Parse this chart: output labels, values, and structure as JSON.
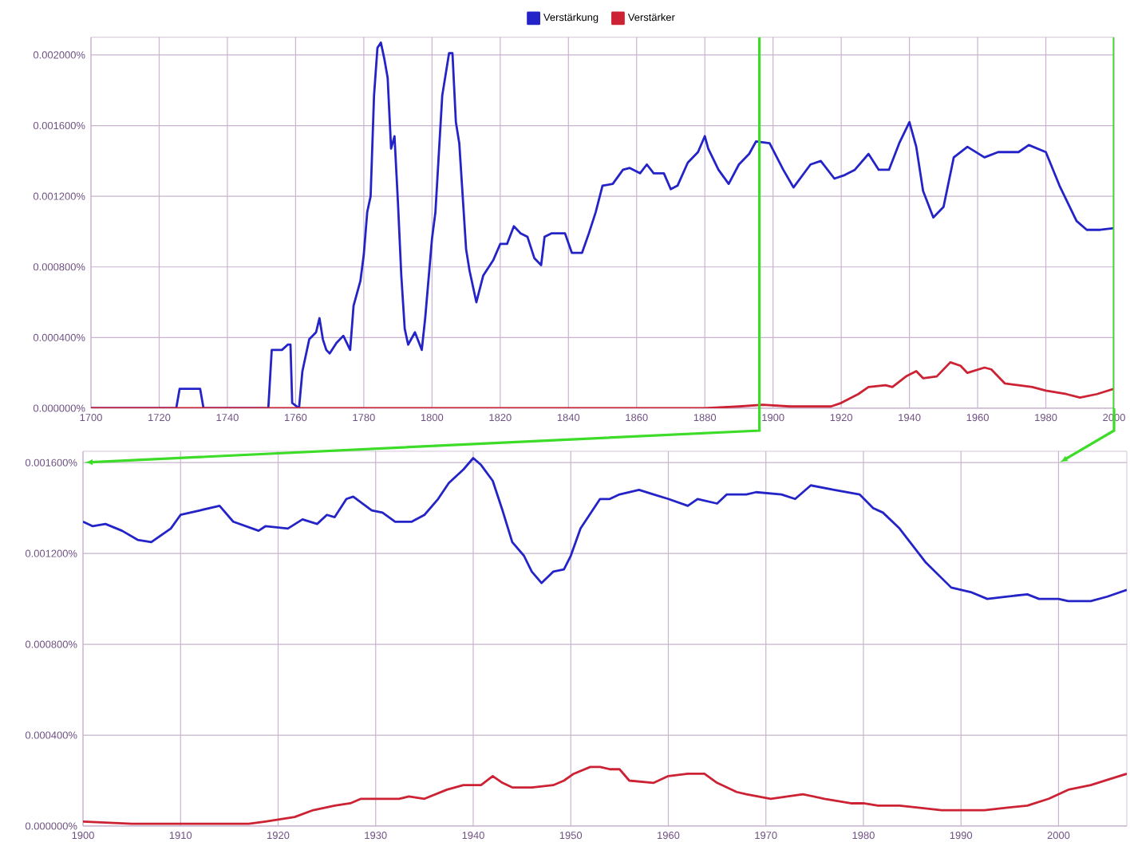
{
  "chart_data": [
    {
      "type": "line",
      "xlim": [
        1700,
        2000
      ],
      "ylim": [
        0,
        0.0021
      ],
      "grid": true,
      "legend": "top",
      "ref_lines": [
        {
          "axis": "x",
          "value": 1896,
          "color": "#3cdc28"
        },
        {
          "axis": "x",
          "value": 2000,
          "color": "#3cdc28"
        }
      ],
      "xticks": [
        1700,
        1720,
        1740,
        1760,
        1780,
        1800,
        1820,
        1840,
        1860,
        1880,
        1900,
        1920,
        1940,
        1960,
        1980,
        2000
      ],
      "yticks": [
        {
          "value": 0,
          "label": "0.000000%"
        },
        {
          "value": 0.0004,
          "label": "0.000400%"
        },
        {
          "value": 0.0008,
          "label": "0.000800%"
        },
        {
          "value": 0.0012,
          "label": "0.001200%"
        },
        {
          "value": 0.0016,
          "label": "0.001600%"
        },
        {
          "value": 0.002,
          "label": "0.002000%"
        }
      ],
      "series": [
        {
          "name": "Verstärkung",
          "color": "#2323c8",
          "x": [
            1700,
            1725,
            1726,
            1732,
            1733,
            1752,
            1753,
            1756,
            1757.7,
            1758.5,
            1759,
            1761,
            1762,
            1764,
            1766,
            1767,
            1768,
            1769,
            1770,
            1772,
            1774,
            1776,
            1777,
            1779,
            1780,
            1781,
            1782,
            1783,
            1784,
            1785,
            1786,
            1787,
            1788,
            1789,
            1790,
            1791,
            1792,
            1793,
            1795,
            1797,
            1798,
            1800,
            1801,
            1803,
            1805,
            1806,
            1807,
            1808,
            1810,
            1811,
            1813,
            1815,
            1818,
            1820,
            1822,
            1824,
            1826,
            1828,
            1830,
            1832,
            1833,
            1835,
            1839,
            1841,
            1844,
            1846,
            1848,
            1850,
            1853,
            1856,
            1858,
            1861,
            1863,
            1865,
            1868,
            1870,
            1872,
            1875,
            1878,
            1880,
            1881,
            1884,
            1887,
            1890,
            1893,
            1895,
            1899,
            1903,
            1906,
            1911,
            1914,
            1918,
            1921,
            1924,
            1928,
            1931,
            1934,
            1937,
            1940,
            1942,
            1944,
            1947,
            1950,
            1953,
            1957,
            1962,
            1966,
            1972,
            1975,
            1980,
            1984,
            1989,
            1992,
            1996,
            2000
          ],
          "values": [
            0,
            0,
            0.00011,
            0.00011,
            0,
            0,
            0.00033,
            0.00033,
            0.00036,
            0.00036,
            3e-05,
            0,
            0.00021,
            0.00039,
            0.00043,
            0.00051,
            0.00039,
            0.00033,
            0.00031,
            0.00037,
            0.00041,
            0.00033,
            0.00058,
            0.00072,
            0.00087,
            0.00111,
            0.0012,
            0.00177,
            0.00204,
            0.00207,
            0.00198,
            0.00187,
            0.00147,
            0.00154,
            0.00117,
            0.00075,
            0.00045,
            0.00036,
            0.00043,
            0.00033,
            0.00051,
            0.00096,
            0.00111,
            0.00177,
            0.00201,
            0.00201,
            0.00162,
            0.0015,
            0.0009,
            0.00078,
            0.0006,
            0.00075,
            0.00084,
            0.00093,
            0.00093,
            0.00103,
            0.00099,
            0.00097,
            0.00085,
            0.00081,
            0.00097,
            0.00099,
            0.00099,
            0.00088,
            0.00088,
            0.00099,
            0.00111,
            0.00126,
            0.00127,
            0.00135,
            0.00136,
            0.00133,
            0.00138,
            0.00133,
            0.00133,
            0.00124,
            0.00126,
            0.00139,
            0.00145,
            0.00154,
            0.00147,
            0.00135,
            0.00127,
            0.00138,
            0.00144,
            0.00151,
            0.0015,
            0.00135,
            0.00125,
            0.00138,
            0.0014,
            0.0013,
            0.00132,
            0.00135,
            0.00144,
            0.00135,
            0.00135,
            0.0015,
            0.00162,
            0.00148,
            0.00123,
            0.00108,
            0.00114,
            0.00142,
            0.00148,
            0.00142,
            0.00145,
            0.00145,
            0.00149,
            0.00145,
            0.00126,
            0.00106,
            0.00101,
            0.00101,
            0.00102
          ]
        },
        {
          "name": "Verstärker",
          "color": "#cc2233",
          "x": [
            1700,
            1880,
            1890,
            1897,
            1905,
            1917,
            1920,
            1925,
            1928,
            1933,
            1935,
            1939,
            1942,
            1944,
            1948,
            1952,
            1955,
            1957,
            1962,
            1964,
            1968,
            1972,
            1976,
            1980,
            1986,
            1990,
            1995,
            2000
          ],
          "values": [
            0,
            0,
            1e-05,
            2e-05,
            1e-05,
            1e-05,
            3e-05,
            8e-05,
            0.00012,
            0.00013,
            0.00012,
            0.00018,
            0.00021,
            0.00017,
            0.00018,
            0.00026,
            0.00024,
            0.0002,
            0.00023,
            0.00022,
            0.00014,
            0.00013,
            0.00012,
            0.0001,
            8e-05,
            6e-05,
            8e-05,
            0.00011
          ]
        }
      ]
    },
    {
      "type": "line",
      "xlim": [
        1900,
        2007
      ],
      "ylim": [
        0,
        0.00165
      ],
      "grid": true,
      "xticks": [
        1900,
        1910,
        1920,
        1930,
        1940,
        1950,
        1960,
        1970,
        1980,
        1990,
        2000
      ],
      "yticks": [
        {
          "value": 0,
          "label": "0.000000%"
        },
        {
          "value": 0.0004,
          "label": "0.000400%"
        },
        {
          "value": 0.0008,
          "label": "0.000800%"
        },
        {
          "value": 0.0012,
          "label": "0.001200%"
        },
        {
          "value": 0.0016,
          "label": "0.001600%"
        }
      ],
      "series": [
        {
          "color": "#2323c8",
          "x": [
            1900,
            1901,
            1902.3,
            1904,
            1905.6,
            1907,
            1908,
            1909,
            1910,
            1912,
            1914,
            1915.4,
            1918,
            1918.7,
            1921,
            1922.5,
            1924,
            1925,
            1925.8,
            1927,
            1927.7,
            1929.6,
            1930.7,
            1932,
            1933.7,
            1935,
            1936.4,
            1937.5,
            1939,
            1940,
            1940.8,
            1942,
            1943,
            1944,
            1945.2,
            1946,
            1947,
            1948.2,
            1949.3,
            1950,
            1951,
            1953,
            1954,
            1955,
            1957,
            1958.5,
            1960,
            1962,
            1963,
            1965,
            1966,
            1968,
            1969,
            1971.6,
            1973,
            1974.6,
            1977,
            1979.6,
            1981,
            1982,
            1983.7,
            1986.4,
            1989,
            1991,
            1992.7,
            1994.6,
            1996.8,
            1998,
            2000,
            2001,
            2003.3,
            2005,
            2007
          ],
          "values": [
            0.00134,
            0.00132,
            0.00133,
            0.0013,
            0.00126,
            0.00125,
            0.00128,
            0.00131,
            0.00137,
            0.00139,
            0.00141,
            0.00134,
            0.0013,
            0.00132,
            0.00131,
            0.00135,
            0.00133,
            0.00137,
            0.00136,
            0.00144,
            0.00145,
            0.00139,
            0.00138,
            0.00134,
            0.00134,
            0.00137,
            0.00144,
            0.00151,
            0.00157,
            0.00162,
            0.00159,
            0.00152,
            0.00139,
            0.00125,
            0.00119,
            0.00112,
            0.00107,
            0.00112,
            0.00113,
            0.00119,
            0.00131,
            0.00144,
            0.00144,
            0.00146,
            0.00148,
            0.00146,
            0.00144,
            0.00141,
            0.00144,
            0.00142,
            0.00146,
            0.00146,
            0.00147,
            0.00146,
            0.00144,
            0.0015,
            0.00148,
            0.00146,
            0.0014,
            0.00138,
            0.00131,
            0.00116,
            0.00105,
            0.00103,
            0.001,
            0.00101,
            0.00102,
            0.001,
            0.001,
            0.00099,
            0.00099,
            0.00101,
            0.00104
          ]
        },
        {
          "color": "#cc2233",
          "x": [
            1900,
            1905,
            1913,
            1917,
            1918.7,
            1921.7,
            1923.6,
            1925.8,
            1927.4,
            1928.5,
            1930.7,
            1932.4,
            1933.4,
            1935,
            1937.3,
            1939,
            1940.8,
            1942,
            1943,
            1944,
            1946,
            1948.2,
            1949.3,
            1950.3,
            1952,
            1953,
            1954,
            1955,
            1956,
            1958.5,
            1960,
            1962,
            1963.7,
            1965,
            1967,
            1968,
            1970.5,
            1972.2,
            1973.8,
            1976,
            1978.7,
            1980,
            1981.5,
            1983.7,
            1985.8,
            1988,
            1990,
            1992.4,
            1994.6,
            1996.8,
            1999,
            2001,
            2003.3,
            2005.5,
            2007
          ],
          "values": [
            2e-05,
            1e-05,
            1e-05,
            1e-05,
            2e-05,
            4e-05,
            7e-05,
            9e-05,
            0.0001,
            0.00012,
            0.00012,
            0.00012,
            0.00013,
            0.00012,
            0.00016,
            0.00018,
            0.00018,
            0.00022,
            0.00019,
            0.00017,
            0.00017,
            0.00018,
            0.0002,
            0.00023,
            0.00026,
            0.00026,
            0.00025,
            0.00025,
            0.0002,
            0.00019,
            0.00022,
            0.00023,
            0.00023,
            0.00019,
            0.00015,
            0.00014,
            0.00012,
            0.00013,
            0.00014,
            0.00012,
            0.0001,
            0.0001,
            9e-05,
            9e-05,
            8e-05,
            7e-05,
            7e-05,
            7e-05,
            8e-05,
            9e-05,
            0.00012,
            0.00016,
            0.00018,
            0.00021,
            0.00023
          ]
        }
      ]
    }
  ]
}
